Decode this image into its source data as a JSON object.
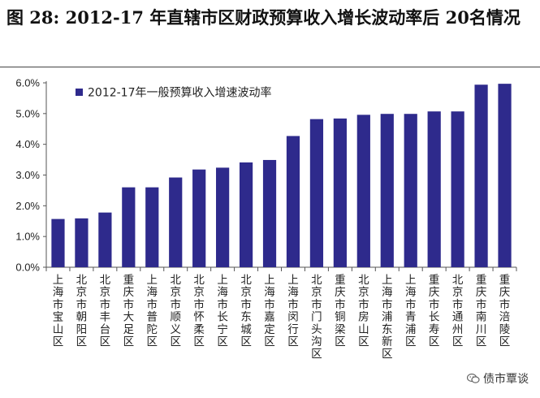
{
  "figure_title": "图 28: 2012-17 年直辖市区财政预算收入增长波动率后 20名情况",
  "watermark_text": "债市覃谈",
  "colors": {
    "bar": "#2e2a8c",
    "axis": "#555555",
    "text": "#222222"
  },
  "chart_data": {
    "type": "bar",
    "title": "",
    "legend": {
      "label": "2012-17年一般预算收入增速波动率",
      "placement": "top-left"
    },
    "categories": [
      "上海市宝山区",
      "北京市朝阳区",
      "北京市丰台区",
      "重庆市大足区",
      "上海市普陀区",
      "北京市顺义区",
      "北京市怀柔区",
      "上海市长宁区",
      "北京市东城区",
      "上海市嘉定区",
      "上海市闵行区",
      "北京市门头沟区",
      "重庆市铜梁区",
      "北京市房山区",
      "上海市浦东新区",
      "上海市青浦区",
      "重庆市长寿区",
      "北京市通州区",
      "重庆市南川区",
      "重庆市涪陵区"
    ],
    "values": [
      1.57,
      1.59,
      1.78,
      2.6,
      2.6,
      2.92,
      3.18,
      3.24,
      3.41,
      3.49,
      4.27,
      4.82,
      4.84,
      4.96,
      4.99,
      4.99,
      5.07,
      5.07,
      5.94,
      5.97
    ],
    "unit": "%",
    "ylim": [
      0,
      6
    ],
    "yticks": [
      0,
      1,
      2,
      3,
      4,
      5,
      6
    ],
    "ytick_labels": [
      "0.0%",
      "1.0%",
      "2.0%",
      "3.0%",
      "4.0%",
      "5.0%",
      "6.0%"
    ],
    "xlabel": "",
    "ylabel": "",
    "grid": false
  }
}
